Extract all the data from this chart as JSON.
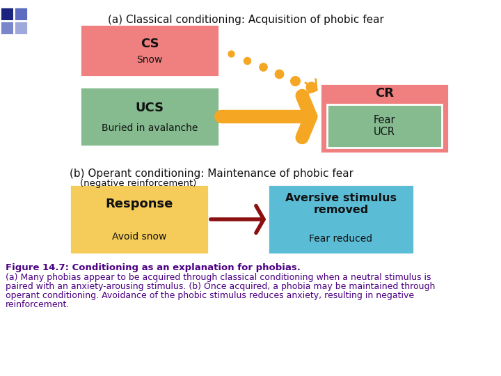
{
  "bg_color": "#ffffff",
  "title_a": "(a) Classical conditioning: Acquisition of phobic fear",
  "title_b": "(b) Operant conditioning: Maintenance of phobic fear",
  "subtitle_b": "(negative reinforcement)",
  "cs_label": "CS",
  "cs_sublabel": "Snow",
  "ucs_label": "UCS",
  "ucs_sublabel": "Buried in avalanche",
  "cr_label": "CR",
  "fear_ucr_label": "Fear\nUCR",
  "response_label": "Response",
  "response_sublabel": "Avoid snow",
  "aversive_label": "Aversive stimulus\nremoved",
  "aversive_sublabel": "Fear reduced",
  "pink_color": "#F08080",
  "green_color": "#85BB8F",
  "yellow_color": "#F5CC5A",
  "blue_color": "#5BBCD6",
  "orange_color": "#F5A623",
  "dark_red_color": "#8B1010",
  "caption_title": "Figure 14.7: Conditioning as an explanation for phobias.",
  "caption_body_a": "(a) Many phobias appear to be acquired through classical conditioning when a neutral stimulus is paired with an anxiety-arousing stimulus.",
  "caption_body_b": "(b) Once acquired, a phobia may be maintained through operant conditioning. Avoidance of the phobic stimulus reduces anxiety, resulting in negative reinforcement.",
  "caption_color": "#4B0082",
  "text_color": "#111111",
  "title_color": "#111111"
}
